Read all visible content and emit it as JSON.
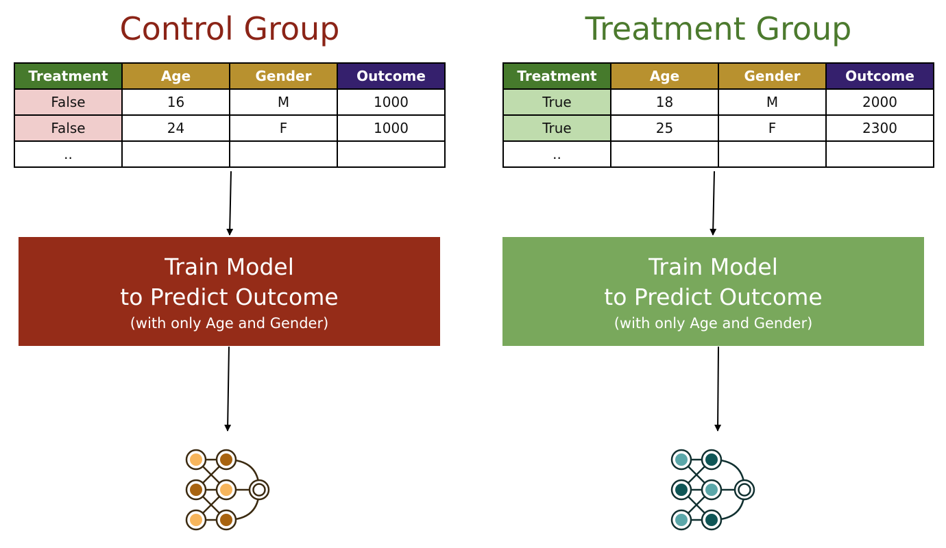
{
  "colors": {
    "control_title": "#8b2417",
    "treatment_title": "#4c7a2e",
    "header_treatment": "#467a2c",
    "header_age": "#b8912f",
    "header_gender": "#b8912f",
    "header_outcome": "#35206d",
    "control_treatment_cell": "#f0cdcc",
    "treatment_treatment_cell": "#bfdcad",
    "control_box": "#952c18",
    "treatment_box": "#79a85c",
    "control_icon_dark": "#a8630f",
    "control_icon_light": "#f7b55b",
    "control_icon_stroke": "#3b2a10",
    "treatment_icon_dark": "#0f5656",
    "treatment_icon_light": "#5ba7a9",
    "treatment_icon_stroke": "#103030"
  },
  "control": {
    "title": "Control Group",
    "table": {
      "headers": [
        "Treatment",
        "Age",
        "Gender",
        "Outcome"
      ],
      "rows": [
        [
          "False",
          "16",
          "M",
          "1000"
        ],
        [
          "False",
          "24",
          "F",
          "1000"
        ],
        [
          "..",
          "",
          "",
          ""
        ]
      ]
    },
    "model_box": {
      "line1": "Train Model",
      "line2": "to Predict Outcome",
      "line3": "(with only Age and Gender)"
    },
    "icon": "neural-network-icon"
  },
  "treatment": {
    "title": "Treatment Group",
    "table": {
      "headers": [
        "Treatment",
        "Age",
        "Gender",
        "Outcome"
      ],
      "rows": [
        [
          "True",
          "18",
          "M",
          "2000"
        ],
        [
          "True",
          "25",
          "F",
          "2300"
        ],
        [
          "..",
          "",
          "",
          ""
        ]
      ]
    },
    "model_box": {
      "line1": "Train Model",
      "line2": "to Predict Outcome",
      "line3": "(with only Age and Gender)"
    },
    "icon": "neural-network-icon"
  }
}
